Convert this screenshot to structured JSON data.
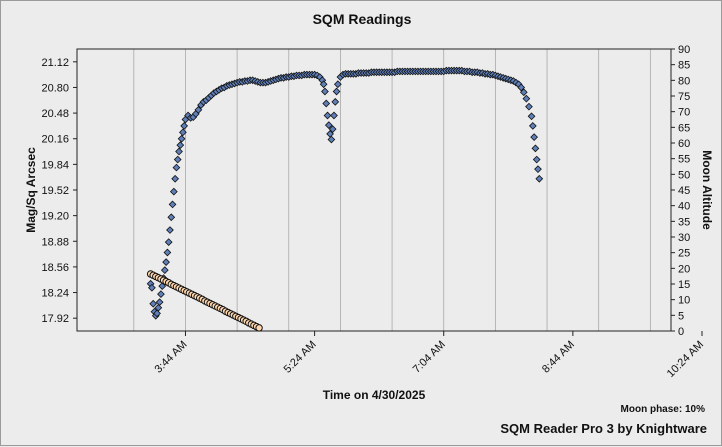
{
  "window": {
    "title": "SQM Readings"
  },
  "footer": {
    "moon_phase": "Moon phase: 10%",
    "brand": "SQM Reader Pro 3 by Knightware"
  },
  "chart_data": {
    "type": "scatter",
    "title": "SQM Readings",
    "xlabel": "Time on 4/30/2025",
    "ylabel_left": "Mag/Sq Arcsec",
    "ylabel_right": "Moon Altitude",
    "x_unit": "minutes after midnight",
    "xlim": [
      140,
      600
    ],
    "x_ticks": [
      {
        "value": 224,
        "label": "3:44 AM"
      },
      {
        "value": 324,
        "label": "5:24 AM"
      },
      {
        "value": 424,
        "label": "7:04 AM"
      },
      {
        "value": 524,
        "label": "8:44 AM"
      },
      {
        "value": 624,
        "label": "10:24 AM"
      }
    ],
    "ylim_left": [
      17.76,
      21.28
    ],
    "y_ticks_left": [
      "17.92",
      "18.24",
      "18.56",
      "18.88",
      "19.20",
      "19.52",
      "19.84",
      "20.16",
      "20.48",
      "20.80",
      "21.12"
    ],
    "ylim_right": [
      0,
      90
    ],
    "y_ticks_right": [
      0,
      5,
      10,
      15,
      20,
      25,
      30,
      35,
      40,
      45,
      50,
      55,
      60,
      65,
      70,
      75,
      80,
      85,
      90
    ],
    "grid": true,
    "colors": {
      "sqm_point": "#5f7fb8",
      "moon_point": "#ffd8b0",
      "point_edge": "#111111",
      "plot_bg": "#ececec",
      "grid": "#a8a8a8"
    },
    "series": [
      {
        "name": "SQM",
        "axis": "left",
        "points": [
          [
            197,
            18.35
          ],
          [
            198,
            18.3
          ],
          [
            199,
            18.1
          ],
          [
            200,
            18.0
          ],
          [
            201,
            17.95
          ],
          [
            202,
            17.98
          ],
          [
            203,
            18.05
          ],
          [
            204,
            18.12
          ],
          [
            205,
            18.22
          ],
          [
            206,
            18.32
          ],
          [
            207,
            18.42
          ],
          [
            208,
            18.52
          ],
          [
            209,
            18.62
          ],
          [
            210,
            18.74
          ],
          [
            211,
            18.87
          ],
          [
            212,
            19.02
          ],
          [
            213,
            19.18
          ],
          [
            214,
            19.34
          ],
          [
            215,
            19.5
          ],
          [
            216,
            19.66
          ],
          [
            217,
            19.8
          ],
          [
            218,
            19.9
          ],
          [
            219,
            20.0
          ],
          [
            220,
            20.08
          ],
          [
            221,
            20.16
          ],
          [
            222,
            20.24
          ],
          [
            223,
            20.32
          ],
          [
            224,
            20.4
          ],
          [
            226,
            20.45
          ],
          [
            228,
            20.42
          ],
          [
            230,
            20.43
          ],
          [
            232,
            20.47
          ],
          [
            234,
            20.52
          ],
          [
            236,
            20.58
          ],
          [
            238,
            20.62
          ],
          [
            240,
            20.64
          ],
          [
            242,
            20.67
          ],
          [
            244,
            20.7
          ],
          [
            246,
            20.73
          ],
          [
            248,
            20.75
          ],
          [
            250,
            20.77
          ],
          [
            252,
            20.79
          ],
          [
            254,
            20.8
          ],
          [
            256,
            20.82
          ],
          [
            258,
            20.83
          ],
          [
            260,
            20.84
          ],
          [
            262,
            20.85
          ],
          [
            264,
            20.86
          ],
          [
            266,
            20.87
          ],
          [
            268,
            20.87
          ],
          [
            270,
            20.88
          ],
          [
            272,
            20.88
          ],
          [
            274,
            20.89
          ],
          [
            276,
            20.89
          ],
          [
            278,
            20.88
          ],
          [
            280,
            20.87
          ],
          [
            282,
            20.86
          ],
          [
            284,
            20.86
          ],
          [
            286,
            20.86
          ],
          [
            288,
            20.87
          ],
          [
            290,
            20.88
          ],
          [
            292,
            20.89
          ],
          [
            294,
            20.9
          ],
          [
            296,
            20.91
          ],
          [
            298,
            20.92
          ],
          [
            300,
            20.92
          ],
          [
            302,
            20.93
          ],
          [
            304,
            20.93
          ],
          [
            306,
            20.94
          ],
          [
            308,
            20.94
          ],
          [
            310,
            20.95
          ],
          [
            312,
            20.95
          ],
          [
            314,
            20.95
          ],
          [
            316,
            20.96
          ],
          [
            318,
            20.96
          ],
          [
            320,
            20.96
          ],
          [
            322,
            20.96
          ],
          [
            324,
            20.96
          ],
          [
            326,
            20.95
          ],
          [
            328,
            20.93
          ],
          [
            330,
            20.89
          ],
          [
            331,
            20.84
          ],
          [
            332,
            20.75
          ],
          [
            333,
            20.6
          ],
          [
            334,
            20.45
          ],
          [
            335,
            20.33
          ],
          [
            336,
            20.22
          ],
          [
            337,
            20.15
          ],
          [
            338,
            20.28
          ],
          [
            339,
            20.45
          ],
          [
            340,
            20.62
          ],
          [
            341,
            20.75
          ],
          [
            342,
            20.84
          ],
          [
            344,
            20.93
          ],
          [
            346,
            20.96
          ],
          [
            348,
            20.97
          ],
          [
            350,
            20.97
          ],
          [
            352,
            20.97
          ],
          [
            354,
            20.97
          ],
          [
            356,
            20.97
          ],
          [
            358,
            20.98
          ],
          [
            360,
            20.98
          ],
          [
            362,
            20.98
          ],
          [
            364,
            20.98
          ],
          [
            366,
            20.98
          ],
          [
            368,
            20.99
          ],
          [
            370,
            20.99
          ],
          [
            372,
            20.99
          ],
          [
            374,
            20.99
          ],
          [
            376,
            20.99
          ],
          [
            378,
            20.99
          ],
          [
            380,
            20.99
          ],
          [
            382,
            20.99
          ],
          [
            384,
            20.99
          ],
          [
            386,
            20.99
          ],
          [
            388,
            21.0
          ],
          [
            390,
            21.0
          ],
          [
            392,
            21.0
          ],
          [
            394,
            21.0
          ],
          [
            396,
            21.0
          ],
          [
            398,
            21.0
          ],
          [
            400,
            21.0
          ],
          [
            402,
            21.0
          ],
          [
            404,
            21.0
          ],
          [
            406,
            21.0
          ],
          [
            408,
            21.0
          ],
          [
            410,
            21.0
          ],
          [
            412,
            21.0
          ],
          [
            414,
            21.0
          ],
          [
            416,
            21.0
          ],
          [
            418,
            21.0
          ],
          [
            420,
            21.0
          ],
          [
            422,
            21.0
          ],
          [
            424,
            21.0
          ],
          [
            426,
            21.01
          ],
          [
            428,
            21.01
          ],
          [
            430,
            21.01
          ],
          [
            432,
            21.01
          ],
          [
            434,
            21.01
          ],
          [
            436,
            21.01
          ],
          [
            438,
            21.01
          ],
          [
            440,
            21.0
          ],
          [
            442,
            21.0
          ],
          [
            444,
            21.0
          ],
          [
            446,
            20.99
          ],
          [
            448,
            20.99
          ],
          [
            450,
            20.99
          ],
          [
            452,
            20.98
          ],
          [
            454,
            20.98
          ],
          [
            456,
            20.97
          ],
          [
            458,
            20.97
          ],
          [
            460,
            20.96
          ],
          [
            462,
            20.96
          ],
          [
            464,
            20.95
          ],
          [
            466,
            20.94
          ],
          [
            468,
            20.93
          ],
          [
            470,
            20.92
          ],
          [
            472,
            20.91
          ],
          [
            474,
            20.9
          ],
          [
            476,
            20.89
          ],
          [
            478,
            20.88
          ],
          [
            480,
            20.86
          ],
          [
            482,
            20.84
          ],
          [
            484,
            20.8
          ],
          [
            486,
            20.74
          ],
          [
            488,
            20.66
          ],
          [
            490,
            20.56
          ],
          [
            492,
            20.44
          ],
          [
            493,
            20.32
          ],
          [
            494,
            20.18
          ],
          [
            495,
            20.04
          ],
          [
            496,
            19.9
          ],
          [
            497,
            19.78
          ],
          [
            498,
            19.66
          ]
        ]
      },
      {
        "name": "Moon Altitude",
        "axis": "right",
        "points": [
          [
            197,
            18.2
          ],
          [
            199,
            17.8
          ],
          [
            201,
            17.4
          ],
          [
            203,
            17.0
          ],
          [
            205,
            16.6
          ],
          [
            207,
            16.2
          ],
          [
            209,
            15.8
          ],
          [
            211,
            15.4
          ],
          [
            213,
            14.9
          ],
          [
            215,
            14.5
          ],
          [
            217,
            14.1
          ],
          [
            219,
            13.7
          ],
          [
            221,
            13.3
          ],
          [
            223,
            12.9
          ],
          [
            225,
            12.5
          ],
          [
            227,
            12.1
          ],
          [
            229,
            11.7
          ],
          [
            231,
            11.3
          ],
          [
            233,
            10.9
          ],
          [
            235,
            10.5
          ],
          [
            237,
            10.1
          ],
          [
            239,
            9.6
          ],
          [
            241,
            9.2
          ],
          [
            243,
            8.8
          ],
          [
            245,
            8.4
          ],
          [
            247,
            8.0
          ],
          [
            249,
            7.6
          ],
          [
            251,
            7.2
          ],
          [
            253,
            6.8
          ],
          [
            255,
            6.3
          ],
          [
            257,
            5.9
          ],
          [
            259,
            5.5
          ],
          [
            261,
            5.1
          ],
          [
            263,
            4.7
          ],
          [
            265,
            4.3
          ],
          [
            267,
            3.9
          ],
          [
            269,
            3.5
          ],
          [
            271,
            3.1
          ],
          [
            273,
            2.6
          ],
          [
            275,
            2.2
          ],
          [
            277,
            1.8
          ],
          [
            279,
            1.4
          ],
          [
            281,
            1.0
          ]
        ]
      }
    ]
  }
}
